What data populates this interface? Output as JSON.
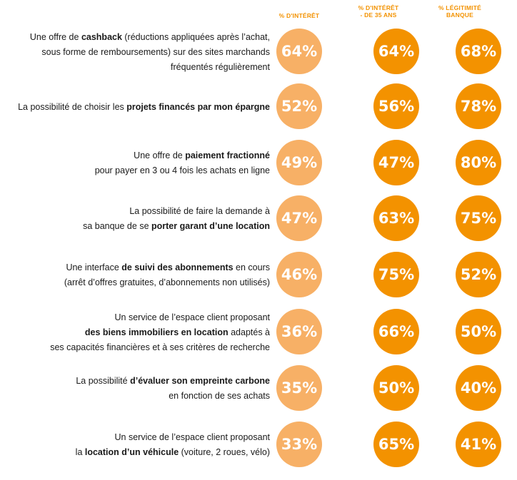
{
  "chart_data": {
    "type": "table",
    "columns": [
      "% D'INTÉRÊT",
      "% D'INTÉRÊT\n- DE 35 ANS",
      "% LÉGITIMITÉ\nBANQUE"
    ],
    "colors": {
      "interest": "#f7b066",
      "under35": "#f39200",
      "legitimacy": "#f39200"
    },
    "rows": [
      {
        "parts": [
          [
            "Une offre de ",
            false
          ],
          [
            "cashback",
            true
          ],
          [
            " (réductions appliquées après l’achat,\nsous forme de remboursements) sur des sites marchands\nfréquentés régulièrement",
            false
          ]
        ],
        "values": [
          64,
          64,
          68
        ]
      },
      {
        "parts": [
          [
            "La possibilité de choisir les ",
            false
          ],
          [
            "projets financés par mon épargne",
            true
          ]
        ],
        "values": [
          52,
          56,
          78
        ]
      },
      {
        "parts": [
          [
            "Une offre de ",
            false
          ],
          [
            "paiement fractionné",
            true
          ],
          [
            "\npour payer en 3 ou 4 fois les achats en ligne",
            false
          ]
        ],
        "values": [
          49,
          47,
          80
        ]
      },
      {
        "parts": [
          [
            "La possibilité de faire la demande à\nsa banque de se ",
            false
          ],
          [
            "porter garant d’une location",
            true
          ]
        ],
        "values": [
          47,
          63,
          75
        ]
      },
      {
        "parts": [
          [
            "Une interface ",
            false
          ],
          [
            "de suivi des abonnements",
            true
          ],
          [
            " en cours\n(arrêt d’offres gratuites, d’abonnements non utilisés)",
            false
          ]
        ],
        "values": [
          46,
          75,
          52
        ]
      },
      {
        "parts": [
          [
            "Un service de l’espace client proposant\n",
            false
          ],
          [
            "des biens immobiliers en location",
            true
          ],
          [
            " adaptés à\nses capacités financières et à ses critères de recherche",
            false
          ]
        ],
        "values": [
          36,
          66,
          50
        ]
      },
      {
        "parts": [
          [
            "La possibilité ",
            false
          ],
          [
            "d’évaluer son empreinte carbone",
            true
          ],
          [
            "\nen fonction de ses achats",
            false
          ]
        ],
        "values": [
          35,
          50,
          40
        ]
      },
      {
        "parts": [
          [
            "Un service de l’espace client proposant\nla ",
            false
          ],
          [
            "location d’un véhicule",
            true
          ],
          [
            " (voiture, 2 roues, vélo)",
            false
          ]
        ],
        "values": [
          33,
          65,
          41
        ]
      }
    ]
  }
}
